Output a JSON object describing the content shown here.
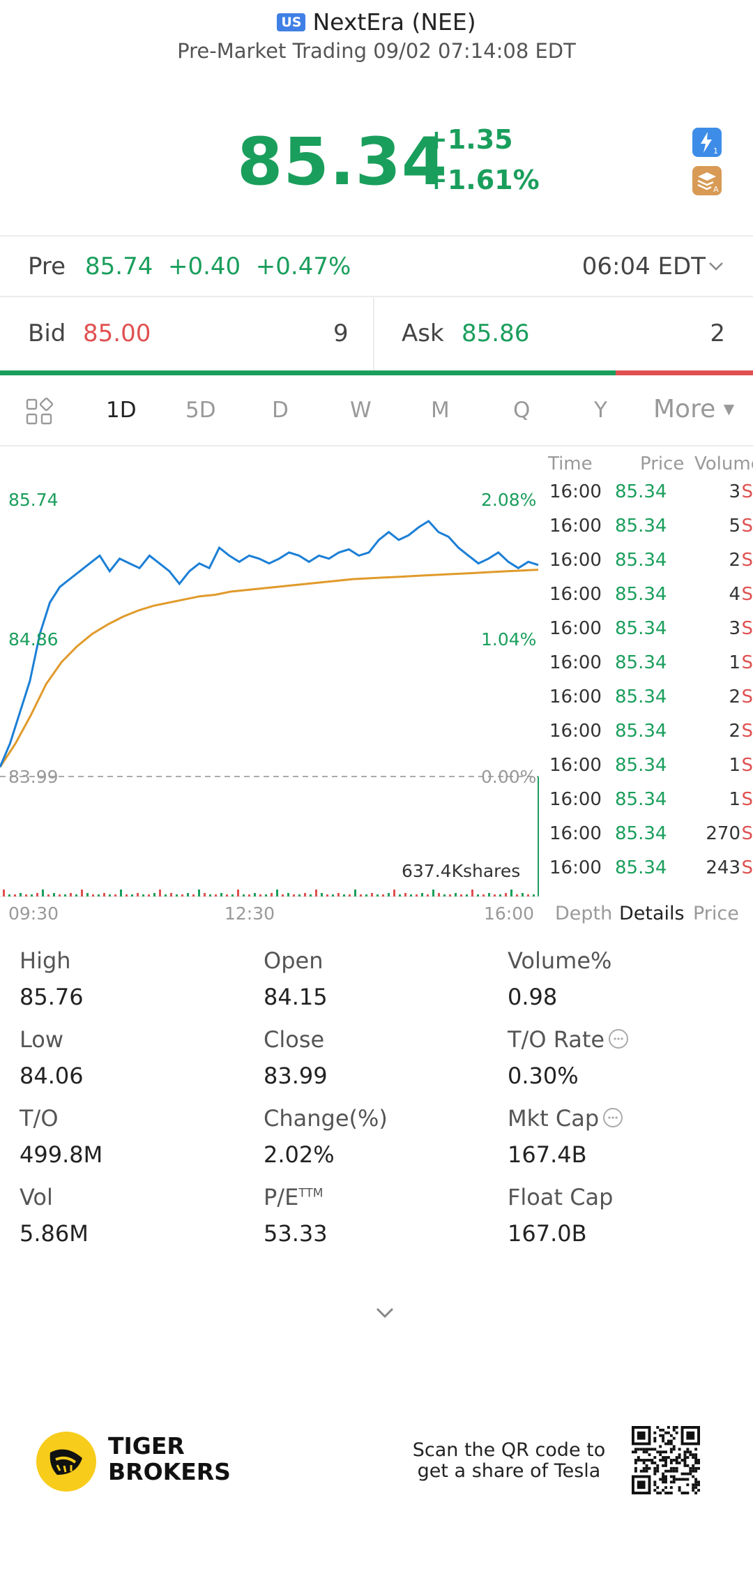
{
  "header": {
    "market_badge": "US",
    "title": "NextEra (NEE)",
    "subtitle": "Pre-Market Trading 09/02 07:14:08 EDT"
  },
  "quote": {
    "price": "85.34",
    "change": "+1.35",
    "change_pct": "+1.61%",
    "colors": {
      "up": "#1a9e5c",
      "down": "#e05050"
    }
  },
  "premarket": {
    "label": "Pre",
    "price": "85.74",
    "change": "+0.40",
    "change_pct": "+0.47%",
    "time": "06:04 EDT"
  },
  "bidask": {
    "bid_label": "Bid",
    "bid_price": "85.00",
    "bid_size": "9",
    "ask_label": "Ask",
    "ask_price": "85.86",
    "ask_size": "2",
    "bid_ratio": 0.818
  },
  "tabs": {
    "items": [
      "1D",
      "5D",
      "D",
      "W",
      "M",
      "Q",
      "Y"
    ],
    "active": "1D",
    "more": "More"
  },
  "chart_data": {
    "type": "line",
    "y_left_labels": [
      "85.74",
      "84.86",
      "83.99"
    ],
    "y_right_labels": [
      "2.08%",
      "1.04%",
      "0.00%"
    ],
    "x_labels": [
      "09:30",
      "12:30",
      "16:00"
    ],
    "ylim": [
      83.99,
      85.74
    ],
    "volume_label": "637.4Kshares",
    "series": [
      {
        "values": [
          84.05,
          84.2,
          84.4,
          84.6,
          84.9,
          85.1,
          85.2,
          85.25,
          85.3,
          85.35,
          85.4,
          85.3,
          85.38,
          85.35,
          85.32,
          85.4,
          85.35,
          85.3,
          85.22,
          85.3,
          85.35,
          85.32,
          85.45,
          85.4,
          85.36,
          85.4,
          85.38,
          85.35,
          85.38,
          85.42,
          85.4,
          85.36,
          85.4,
          85.38,
          85.42,
          85.44,
          85.4,
          85.42,
          85.5,
          85.55,
          85.5,
          85.53,
          85.58,
          85.62,
          85.55,
          85.52,
          85.45,
          85.4,
          85.35,
          85.38,
          85.42,
          85.36,
          85.32,
          85.36,
          85.34
        ],
        "color": "#1b7fd6"
      },
      {
        "values": [
          84.05,
          84.2,
          84.38,
          84.58,
          84.72,
          84.82,
          84.9,
          84.96,
          85.01,
          85.05,
          85.08,
          85.1,
          85.12,
          85.14,
          85.15,
          85.17,
          85.18,
          85.19,
          85.2,
          85.21,
          85.22,
          85.23,
          85.24,
          85.25,
          85.255,
          85.26,
          85.265,
          85.27,
          85.275,
          85.28,
          85.285,
          85.29,
          85.295,
          85.3,
          85.305,
          85.31
        ],
        "color": "#e09a2a"
      }
    ]
  },
  "tick_table": {
    "headers": [
      "Time",
      "Price",
      "Volume"
    ],
    "rows": [
      {
        "time": "16:00",
        "price": "85.34",
        "vol": "3",
        "side": "S"
      },
      {
        "time": "16:00",
        "price": "85.34",
        "vol": "5",
        "side": "S"
      },
      {
        "time": "16:00",
        "price": "85.34",
        "vol": "2",
        "side": "S"
      },
      {
        "time": "16:00",
        "price": "85.34",
        "vol": "4",
        "side": "S"
      },
      {
        "time": "16:00",
        "price": "85.34",
        "vol": "3",
        "side": "S"
      },
      {
        "time": "16:00",
        "price": "85.34",
        "vol": "1",
        "side": "S"
      },
      {
        "time": "16:00",
        "price": "85.34",
        "vol": "2",
        "side": "S"
      },
      {
        "time": "16:00",
        "price": "85.34",
        "vol": "2",
        "side": "S"
      },
      {
        "time": "16:00",
        "price": "85.34",
        "vol": "1",
        "side": "S"
      },
      {
        "time": "16:00",
        "price": "85.34",
        "vol": "1",
        "side": "S"
      },
      {
        "time": "16:00",
        "price": "85.34",
        "vol": "270",
        "side": "S"
      },
      {
        "time": "16:00",
        "price": "85.34",
        "vol": "243",
        "side": "S"
      }
    ],
    "subtabs": [
      "Depth",
      "Details",
      "Price"
    ],
    "active_subtab": "Details"
  },
  "stats": {
    "high": {
      "label": "High",
      "value": "85.76"
    },
    "open": {
      "label": "Open",
      "value": "84.15"
    },
    "volume_pct": {
      "label": "Volume%",
      "value": "0.98"
    },
    "low": {
      "label": "Low",
      "value": "84.06"
    },
    "close": {
      "label": "Close",
      "value": "83.99"
    },
    "to_rate": {
      "label": "T/O Rate",
      "value": "0.30%"
    },
    "to": {
      "label": "T/O",
      "value": "499.8M"
    },
    "change_pct": {
      "label": "Change(%)",
      "value": "2.02%"
    },
    "mkt_cap": {
      "label": "Mkt Cap",
      "value": "167.4B"
    },
    "vol": {
      "label": "Vol",
      "value": "5.86M"
    },
    "pe": {
      "label": "P/E",
      "sup": "TTM",
      "value": "53.33"
    },
    "float_cap": {
      "label": "Float Cap",
      "value": "167.0B"
    }
  },
  "footer": {
    "brand_line1": "TIGER",
    "brand_line2": "BROKERS",
    "scan_line1": "Scan the QR code to",
    "scan_line2": "get a share of Tesla"
  }
}
